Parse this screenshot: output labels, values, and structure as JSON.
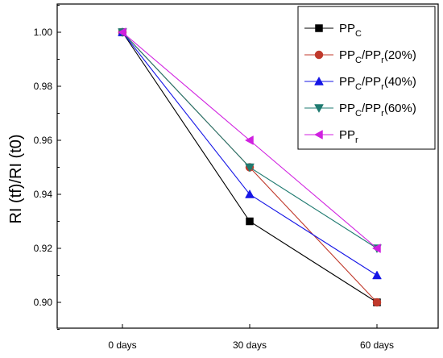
{
  "chart_data": {
    "type": "line",
    "title": "",
    "xlabel": "",
    "ylabel": "RI (tf)/RI (t0)",
    "categories": [
      "0 days",
      "30 days",
      "60 days"
    ],
    "ylim": [
      0.89,
      1.01
    ],
    "yticks": [
      "0.90",
      "0.92",
      "0.94",
      "0.96",
      "0.98",
      "1.00"
    ],
    "grid": false,
    "legend_position": "top-right",
    "series": [
      {
        "name": "PP_C",
        "legend": {
          "base": "PP",
          "subs": [
            "C"
          ],
          "suffix": ""
        },
        "values": [
          1.0,
          0.93,
          0.9
        ],
        "color": "#000000",
        "marker": "square"
      },
      {
        "name": "PP_C/PP_r(20%)",
        "legend": {
          "base": "PP",
          "subs": [
            "C",
            "r"
          ],
          "suffix": "(20%)"
        },
        "values": [
          1.0,
          0.95,
          0.9
        ],
        "color": "#c0392b",
        "marker": "circle"
      },
      {
        "name": "PP_C/PP_r(40%)",
        "legend": {
          "base": "PP",
          "subs": [
            "C",
            "r"
          ],
          "suffix": "(40%)"
        },
        "values": [
          1.0,
          0.94,
          0.91
        ],
        "color": "#1515e6",
        "marker": "triangle-up"
      },
      {
        "name": "PP_C/PP_r(60%)",
        "legend": {
          "base": "PP",
          "subs": [
            "C",
            "r"
          ],
          "suffix": "(60%)"
        },
        "values": [
          1.0,
          0.95,
          0.92
        ],
        "color": "#1f7a70",
        "marker": "triangle-down"
      },
      {
        "name": "PP_r",
        "legend": {
          "base": "PP",
          "subs": [
            "r"
          ],
          "suffix": ""
        },
        "values": [
          1.0,
          0.96,
          0.92
        ],
        "color": "#d020e0",
        "marker": "triangle-left"
      }
    ]
  }
}
